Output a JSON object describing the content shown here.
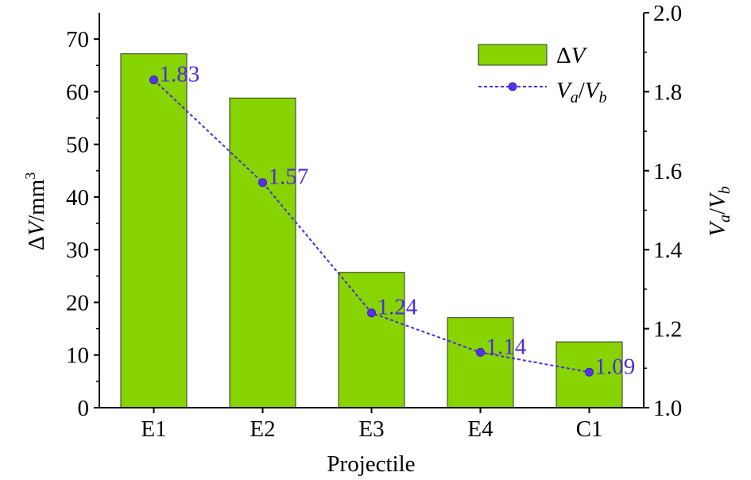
{
  "chart_data": {
    "type": "bar",
    "categories": [
      "E1",
      "E2",
      "E3",
      "E4",
      "C1"
    ],
    "xlabel": "Projectile",
    "series": [
      {
        "name": "ΔV",
        "axis": "left",
        "type": "bar",
        "values": [
          67.2,
          58.8,
          25.7,
          17.1,
          12.5
        ],
        "color": "#88D400"
      },
      {
        "name": "Va/Vb",
        "axis": "right",
        "type": "line",
        "style": "dotted",
        "marker": "circle",
        "values": [
          1.83,
          1.57,
          1.24,
          1.14,
          1.09
        ],
        "labels": [
          "1.83",
          "1.57",
          "1.24",
          "1.14",
          "1.09"
        ],
        "color": "#4B2BE0"
      }
    ],
    "y_left": {
      "label": "ΔV/mm³",
      "ylim": [
        0,
        75
      ],
      "ticks": [
        "0",
        "10",
        "20",
        "30",
        "40",
        "50",
        "60",
        "70"
      ]
    },
    "y_right": {
      "label": "Va/Vb",
      "ylim": [
        1.0,
        2.0
      ],
      "ticks": [
        "1.0",
        "1.2",
        "1.4",
        "1.6",
        "1.8",
        "2.0"
      ]
    },
    "legend": {
      "placement": "top-right",
      "items": [
        "ΔV",
        "Va/Vb"
      ]
    },
    "grid": false
  }
}
